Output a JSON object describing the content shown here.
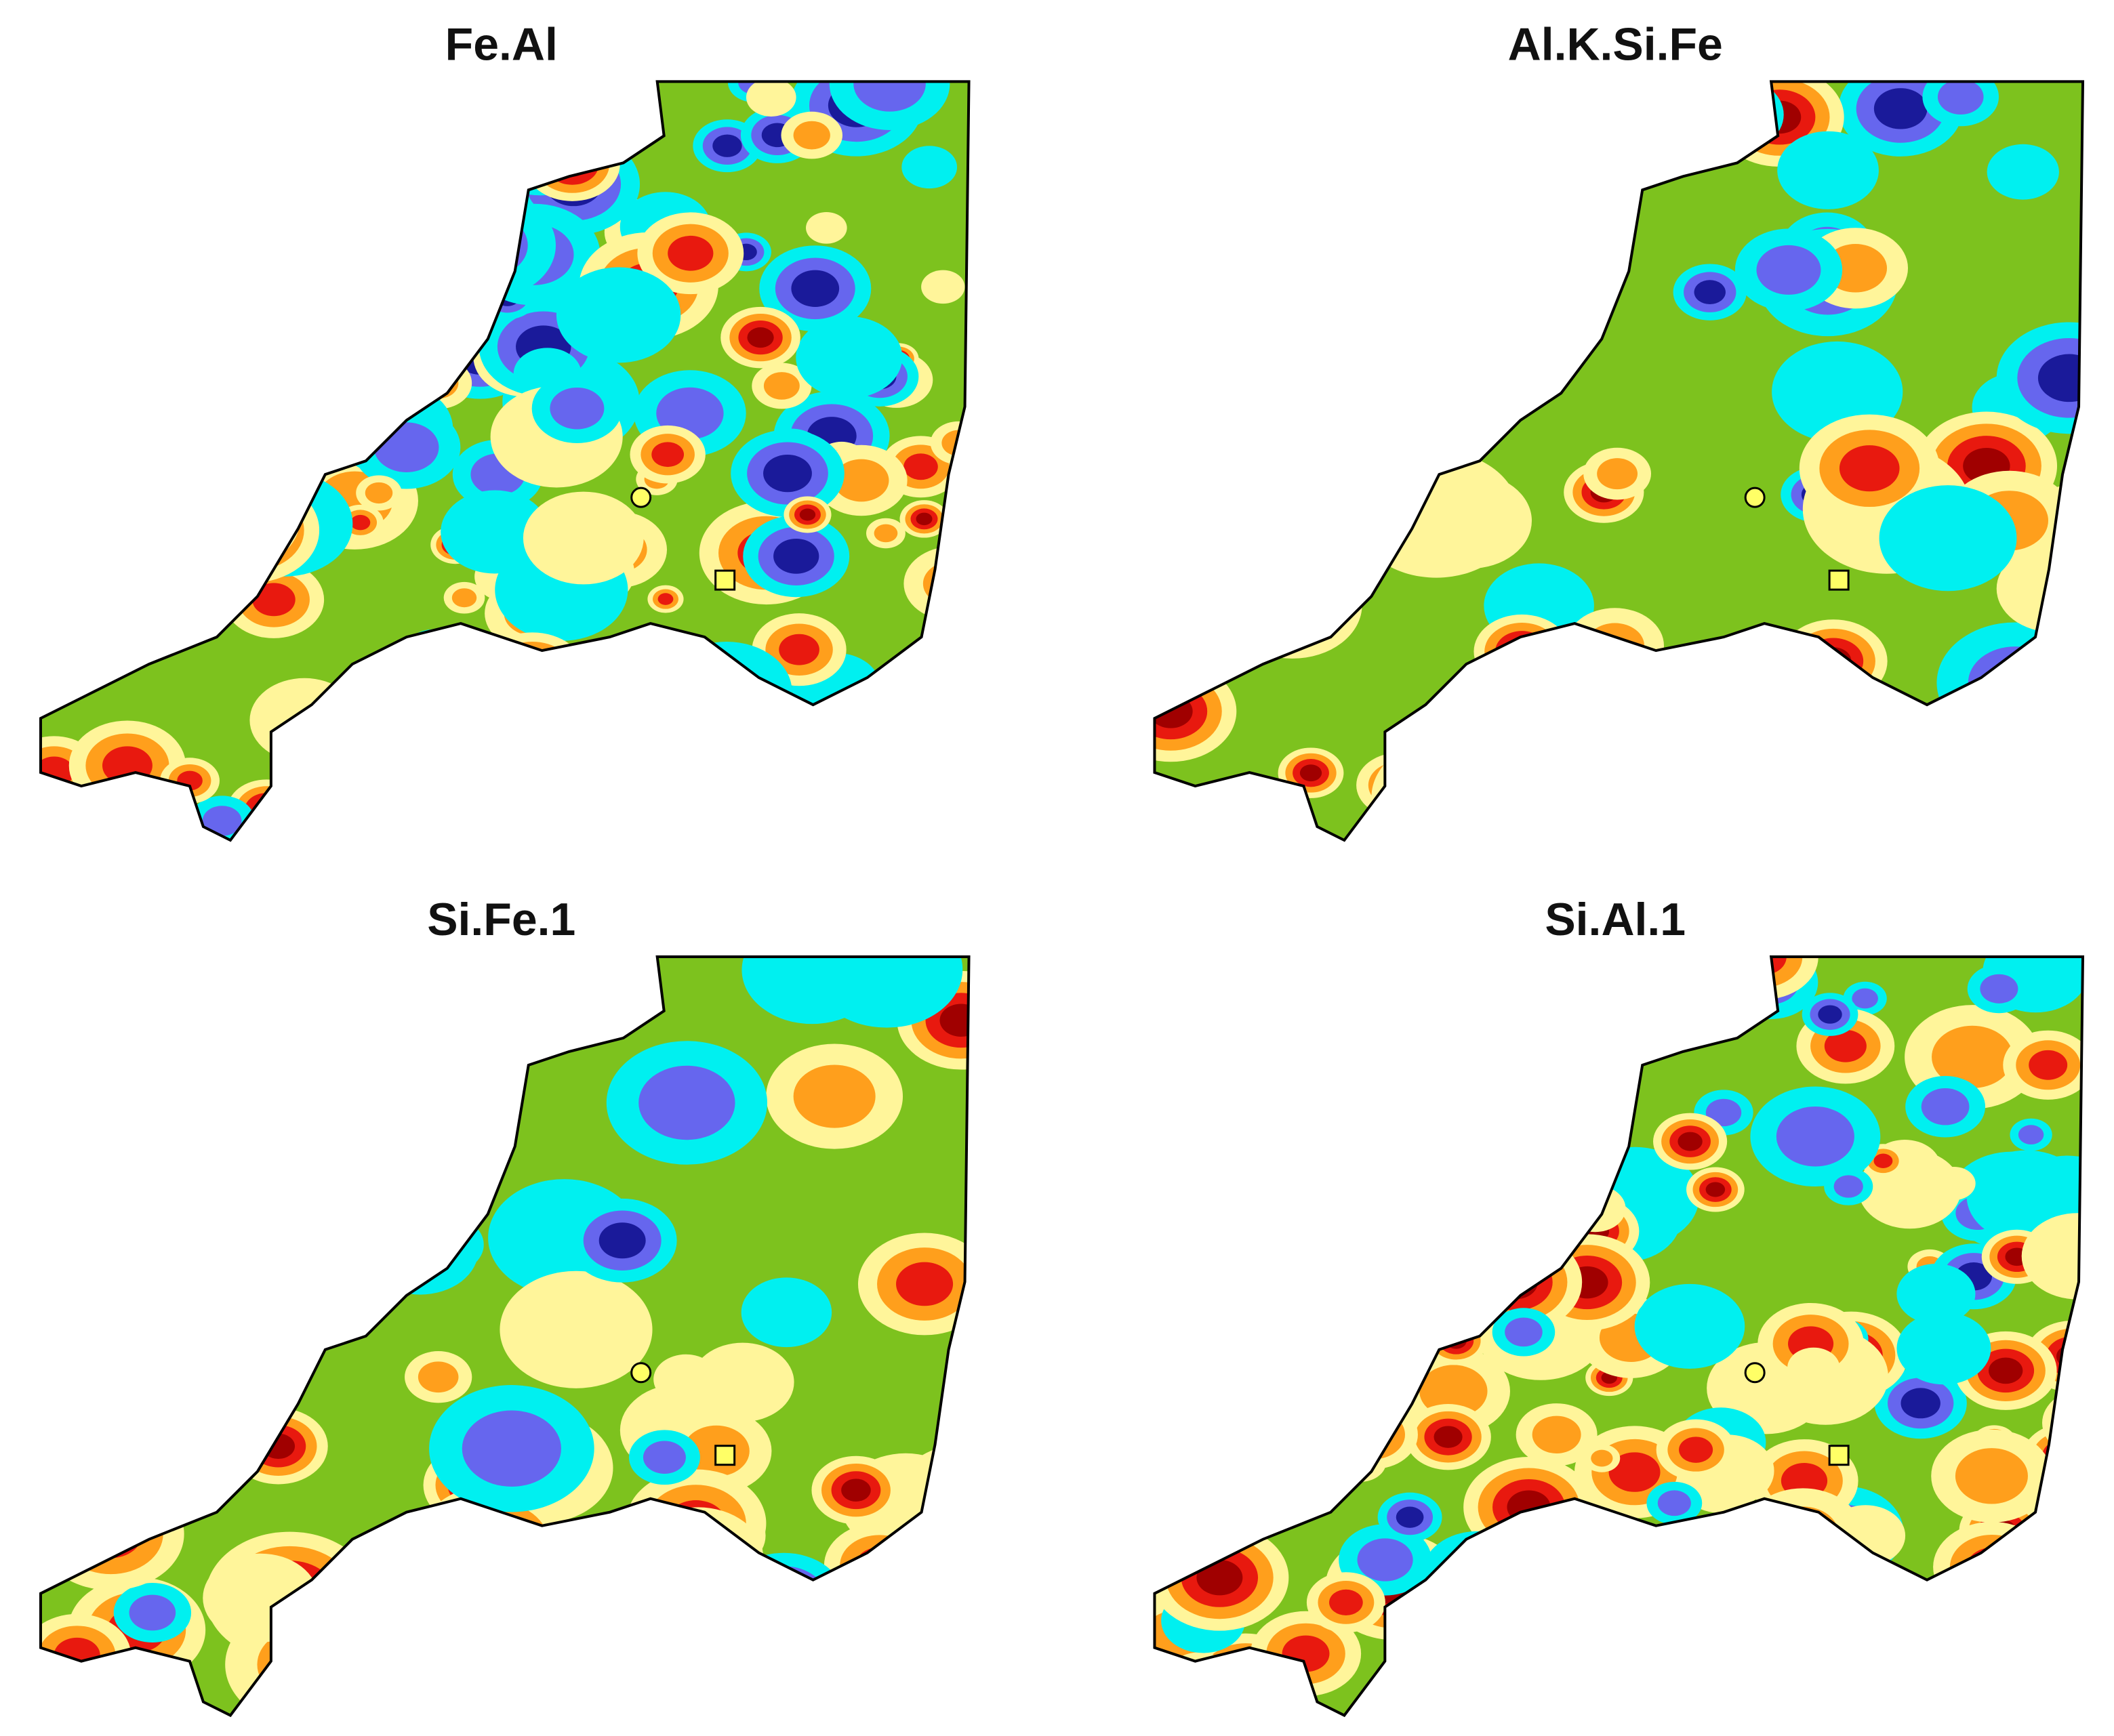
{
  "panels": [
    {
      "title": "Fe.Al"
    },
    {
      "title": "Al.K.Si.Fe"
    },
    {
      "title": "Si.Fe.1"
    },
    {
      "title": "Si.Al.1"
    }
  ]
}
